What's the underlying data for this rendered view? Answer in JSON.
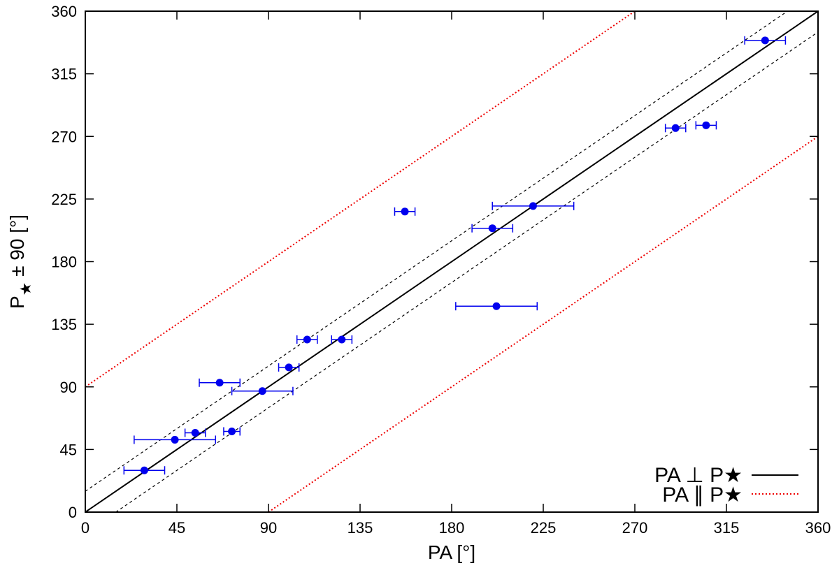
{
  "chart_data": {
    "type": "scatter",
    "xlabel": "PA [°]",
    "ylabel_main": "P",
    "ylabel_sub": "★",
    "ylabel_rest": " ± 90 [°]",
    "xlim": [
      0,
      360
    ],
    "ylim": [
      0,
      360
    ],
    "xticks": [
      0,
      45,
      90,
      135,
      180,
      225,
      270,
      315,
      360
    ],
    "yticks": [
      0,
      45,
      90,
      135,
      180,
      225,
      270,
      315,
      360
    ],
    "grid": false,
    "legend_position": "bottom-right",
    "colors": {
      "points": "#0000ee",
      "perpendicular_line": "#000000",
      "parallel_line": "#ee0000",
      "band_line": "#000000"
    },
    "lines": {
      "perpendicular": {
        "label": "PA ⊥ P★",
        "slope": 1,
        "intercept": 0
      },
      "parallel": [
        {
          "label": "PA ∥ P★",
          "slope": 1,
          "intercept": 90
        },
        {
          "slope": 1,
          "intercept": -90
        }
      ],
      "band": [
        {
          "slope": 1,
          "intercept": 15
        },
        {
          "slope": 1,
          "intercept": -15
        }
      ]
    },
    "points": [
      {
        "x": 29,
        "y": 30,
        "xerr": 10
      },
      {
        "x": 44,
        "y": 52,
        "xerr": 20
      },
      {
        "x": 54,
        "y": 57,
        "xerr": 5
      },
      {
        "x": 66,
        "y": 93,
        "xerr": 10
      },
      {
        "x": 72,
        "y": 58,
        "xerr": 4
      },
      {
        "x": 87,
        "y": 87,
        "xerr": 15
      },
      {
        "x": 100,
        "y": 104,
        "xerr": 5
      },
      {
        "x": 109,
        "y": 124,
        "xerr": 5
      },
      {
        "x": 126,
        "y": 124,
        "xerr": 5
      },
      {
        "x": 157,
        "y": 216,
        "xerr": 5
      },
      {
        "x": 200,
        "y": 204,
        "xerr": 10
      },
      {
        "x": 202,
        "y": 148,
        "xerr": 20
      },
      {
        "x": 220,
        "y": 220,
        "xerr": 20
      },
      {
        "x": 290,
        "y": 276,
        "xerr": 5
      },
      {
        "x": 305,
        "y": 278,
        "xerr": 5
      },
      {
        "x": 334,
        "y": 339,
        "xerr": 10
      }
    ]
  }
}
